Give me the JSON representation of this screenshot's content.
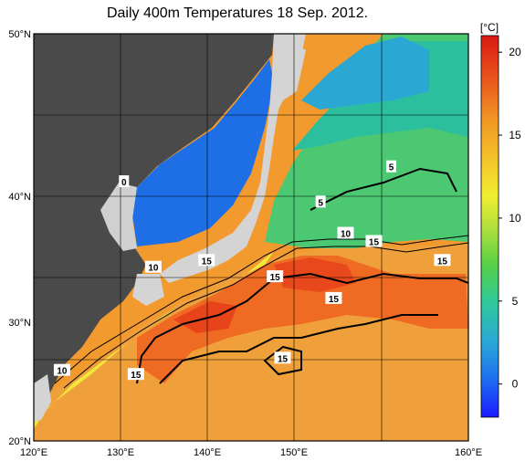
{
  "title": "Daily 400m Temperatures 18 Sep. 2012.",
  "x_ticks": [
    "120°E",
    "130°E",
    "140°E",
    "150°E",
    "160°E"
  ],
  "y_ticks": [
    "50°N",
    "40°N",
    "30°N",
    "20°N"
  ],
  "colorbar": {
    "unit": "[°C]",
    "ticks": [
      "20",
      "15",
      "10",
      "5",
      "0"
    ],
    "min": -2,
    "max": 21
  },
  "contour_labels": [
    {
      "text": "0",
      "lon": 128.3,
      "lat": 39.1
    },
    {
      "text": "5",
      "lon": 152.9,
      "lat": 40.2
    },
    {
      "text": "5",
      "lon": 146.4,
      "lat": 37.6
    },
    {
      "text": "10",
      "lon": 148.7,
      "lat": 35.3
    },
    {
      "text": "15",
      "lon": 151.3,
      "lat": 34.7
    },
    {
      "text": "10",
      "lon": 131.0,
      "lat": 32.8
    },
    {
      "text": "15",
      "lon": 135.9,
      "lat": 33.3
    },
    {
      "text": "15",
      "lon": 142.2,
      "lat": 32.1
    },
    {
      "text": "15",
      "lon": 157.6,
      "lat": 33.3
    },
    {
      "text": "15",
      "lon": 147.6,
      "lat": 30.5
    },
    {
      "text": "15",
      "lon": 142.9,
      "lat": 26.1
    },
    {
      "text": "15",
      "lon": 129.4,
      "lat": 24.9
    },
    {
      "text": "10",
      "lon": 122.6,
      "lat": 25.2
    }
  ],
  "colors": {
    "land": "#4a4a4a",
    "land_light": "#d0d0d0",
    "grid": "#000000"
  }
}
